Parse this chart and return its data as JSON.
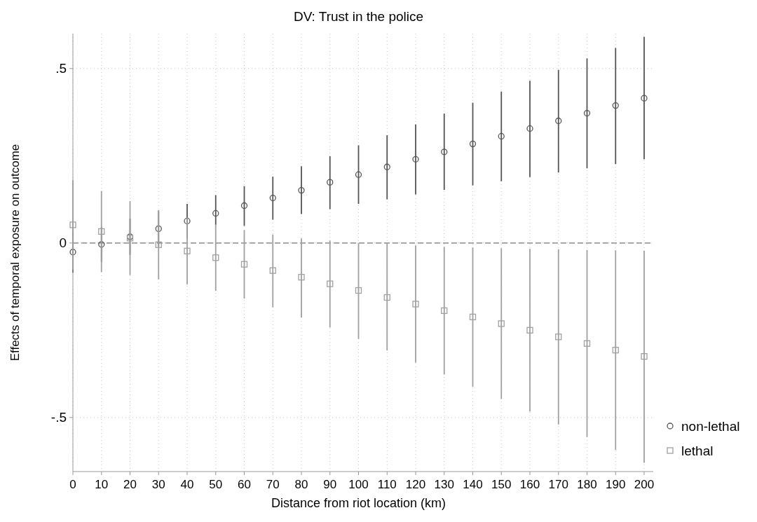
{
  "chart_data": {
    "type": "scatter",
    "title": "DV: Trust in the police",
    "xlabel": "Distance from riot location (km)",
    "ylabel": "Effects of temporal exposure on outcome",
    "categories": [
      "0",
      "10",
      "20",
      "30",
      "40",
      "50",
      "60",
      "70",
      "80",
      "90",
      "100",
      "110",
      "120",
      "130",
      "140",
      "150",
      "160",
      "170",
      "180",
      "190",
      "200"
    ],
    "ylim": [
      -0.655,
      0.6
    ],
    "yticks": [
      {
        "value": -0.5,
        "label": "-.5"
      },
      0,
      {
        "value": 0.5,
        "label": ".5"
      }
    ],
    "grid": true,
    "legend": "right",
    "ref_lines": [
      {
        "axis": "y",
        "value": 0,
        "line_style": "dashed",
        "color": "#777777"
      }
    ],
    "series": [
      {
        "name": "non-lethal",
        "color": "#555555",
        "marker": "circle",
        "values": [
          -0.026,
          -0.004,
          0.018,
          0.041,
          0.063,
          0.085,
          0.107,
          0.129,
          0.151,
          0.174,
          0.196,
          0.218,
          0.24,
          0.261,
          0.284,
          0.306,
          0.328,
          0.35,
          0.372,
          0.394,
          0.415
        ],
        "errors": [
          [
            -0.085,
            0.033
          ],
          [
            -0.054,
            0.046
          ],
          [
            -0.034,
            0.07
          ],
          [
            -0.011,
            0.093
          ],
          [
            0.012,
            0.112
          ],
          [
            0.052,
            0.137
          ],
          [
            0.049,
            0.163
          ],
          [
            0.067,
            0.19
          ],
          [
            0.083,
            0.22
          ],
          [
            0.097,
            0.249
          ],
          [
            0.112,
            0.28
          ],
          [
            0.125,
            0.309
          ],
          [
            0.139,
            0.34
          ],
          [
            0.152,
            0.371
          ],
          [
            0.165,
            0.402
          ],
          [
            0.177,
            0.434
          ],
          [
            0.189,
            0.465
          ],
          [
            0.202,
            0.496
          ],
          [
            0.214,
            0.529
          ],
          [
            0.226,
            0.559
          ],
          [
            0.24,
            0.591
          ]
        ]
      },
      {
        "name": "lethal",
        "color": "#a0a0a0",
        "marker": "square",
        "values": [
          0.052,
          0.033,
          0.014,
          -0.005,
          -0.023,
          -0.042,
          -0.061,
          -0.079,
          -0.098,
          -0.117,
          -0.136,
          -0.156,
          -0.175,
          -0.194,
          -0.212,
          -0.231,
          -0.25,
          -0.269,
          -0.288,
          -0.307,
          -0.325
        ],
        "errors": [
          [
            -0.076,
            0.18
          ],
          [
            -0.083,
            0.149
          ],
          [
            -0.092,
            0.12
          ],
          [
            -0.104,
            0.093
          ],
          [
            -0.119,
            0.073
          ],
          [
            -0.137,
            0.053
          ],
          [
            -0.159,
            0.037
          ],
          [
            -0.184,
            0.024
          ],
          [
            -0.213,
            0.013
          ],
          [
            -0.242,
            0.007
          ],
          [
            -0.275,
            0.0
          ],
          [
            -0.308,
            -0.001
          ],
          [
            -0.343,
            -0.007
          ],
          [
            -0.377,
            -0.011
          ],
          [
            -0.412,
            -0.013
          ],
          [
            -0.447,
            -0.015
          ],
          [
            -0.483,
            -0.017
          ],
          [
            -0.52,
            -0.018
          ],
          [
            -0.556,
            -0.02
          ],
          [
            -0.593,
            -0.021
          ],
          [
            -0.63,
            -0.022
          ]
        ]
      }
    ]
  }
}
